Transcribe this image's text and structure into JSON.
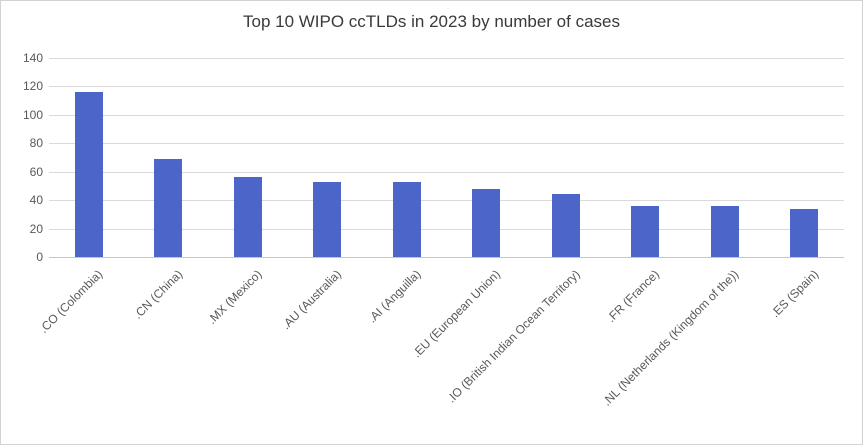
{
  "chart_data": {
    "type": "bar",
    "title": "Top 10 WIPO ccTLDs in 2023 by number of cases",
    "categories": [
      ".CO (Colombia)",
      ".CN (China)",
      ".MX (Mexico)",
      ".AU (Australia)",
      ".AI (Anguilla)",
      ".EU (European Union)",
      ".IO (British Indian Ocean Territory)",
      ".FR (France)",
      ".NL (Netherlands (Kingdom of the))",
      ".ES (Spain)"
    ],
    "values": [
      116,
      69,
      56,
      53,
      53,
      48,
      44,
      36,
      36,
      34
    ],
    "xlabel": "",
    "ylabel": "",
    "ylim": [
      0,
      140
    ],
    "ytick_step": 20,
    "ytick_labels": [
      "0",
      "20",
      "40",
      "60",
      "80",
      "100",
      "120",
      "140"
    ],
    "grid": true,
    "legend": false,
    "colors": {
      "bar": "#4b66c8",
      "gridline": "#dadada",
      "axis_line": "#c6c6c6",
      "tick_text": "#595959",
      "title_text": "#3a3a3a",
      "border": "#d2d2d2"
    }
  }
}
